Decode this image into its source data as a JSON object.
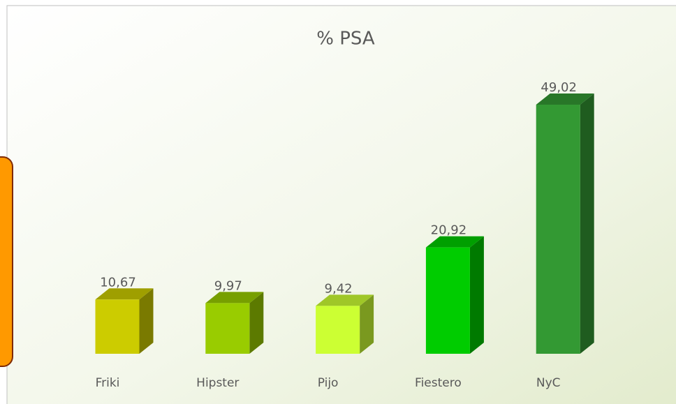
{
  "chart_data": {
    "type": "bar3d",
    "title": "% PSA",
    "categories": [
      "Friki",
      "Hipster",
      "Pijo",
      "Fiestero",
      "NyC"
    ],
    "values": [
      10.67,
      9.97,
      9.42,
      20.92,
      49.02
    ],
    "value_labels": [
      "10,67",
      "9,97",
      "9,42",
      "20,92",
      "49,02"
    ],
    "colors": [
      "#cccc00",
      "#99cc00",
      "#ccff33",
      "#00cc00",
      "#339933"
    ]
  }
}
